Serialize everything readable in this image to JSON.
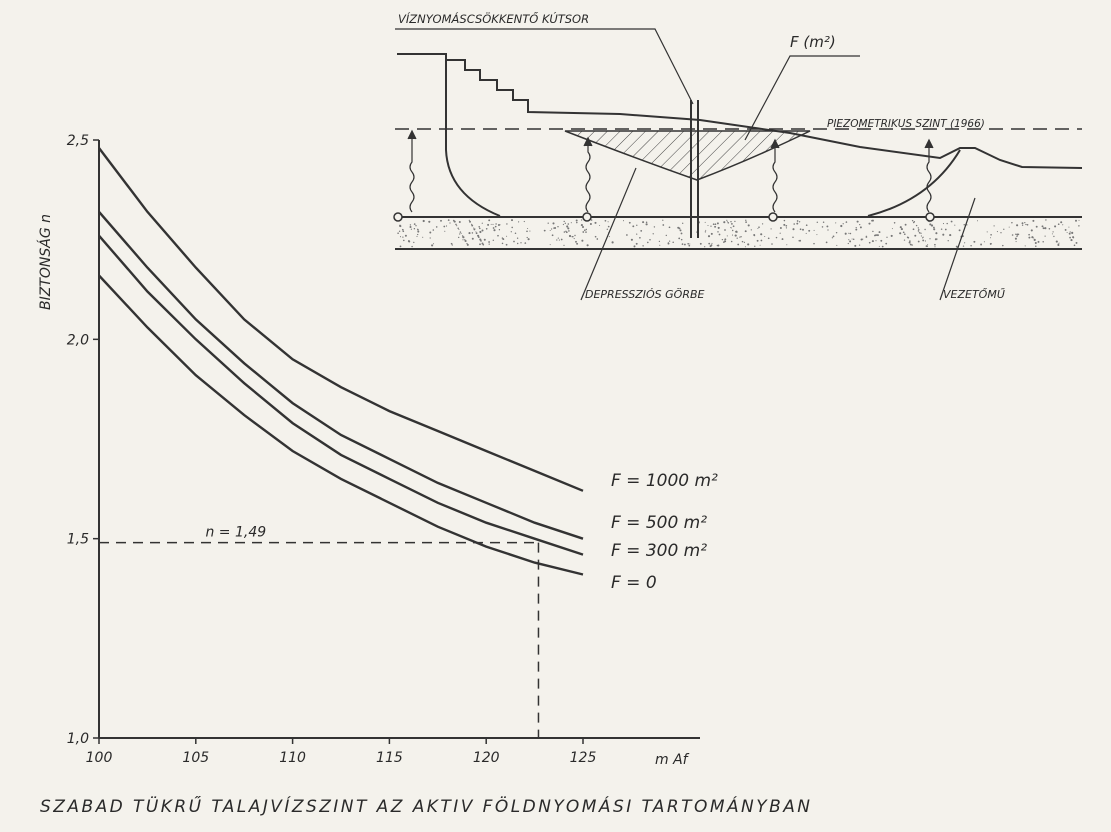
{
  "chart_data": {
    "type": "line",
    "ylabel": "BIZTONSÁG  n",
    "x_unit": "m Af",
    "xlabel": "SZABAD TÜKRŰ TALAJVÍZSZINT AZ AKTIV FÖLDNYOMÁSI TARTOMÁNYBAN",
    "xlim": [
      100,
      125
    ],
    "ylim": [
      1.0,
      2.5
    ],
    "x_ticks": [
      "100",
      "105",
      "110",
      "115",
      "120",
      "125"
    ],
    "y_ticks": [
      "1,0",
      "1,5",
      "2,0",
      "2,5"
    ],
    "x": [
      100,
      102.5,
      105,
      107.5,
      110,
      112.5,
      115,
      117.5,
      120,
      122.5,
      125
    ],
    "series": [
      {
        "name": "F = 1000 m²",
        "values": [
          2.48,
          2.32,
          2.18,
          2.05,
          1.95,
          1.88,
          1.82,
          1.77,
          1.72,
          1.67,
          1.62
        ]
      },
      {
        "name": "F = 500 m²",
        "values": [
          2.32,
          2.18,
          2.05,
          1.94,
          1.84,
          1.76,
          1.7,
          1.64,
          1.59,
          1.54,
          1.5
        ]
      },
      {
        "name": "F = 300 m²",
        "values": [
          2.26,
          2.12,
          2.0,
          1.89,
          1.79,
          1.71,
          1.65,
          1.59,
          1.54,
          1.5,
          1.46
        ]
      },
      {
        "name": "F = 0",
        "values": [
          2.16,
          2.03,
          1.91,
          1.81,
          1.72,
          1.65,
          1.59,
          1.53,
          1.48,
          1.44,
          1.41
        ]
      }
    ],
    "annotation": {
      "label": "n = 1,49",
      "x": 122.7,
      "y": 1.49
    },
    "grid": false,
    "legend": "right"
  },
  "inset": {
    "label_top": "VÍZNYOMÁSCSÖKKENTŐ  KÚTSOR",
    "label_area": "F (m²)",
    "label_level": "PIEZOMETRIKUS  SZINT  (1966)",
    "label_curve": "DEPRESSZIÓS  GÖRBE",
    "label_drain": "VEZETŐMŰ"
  }
}
